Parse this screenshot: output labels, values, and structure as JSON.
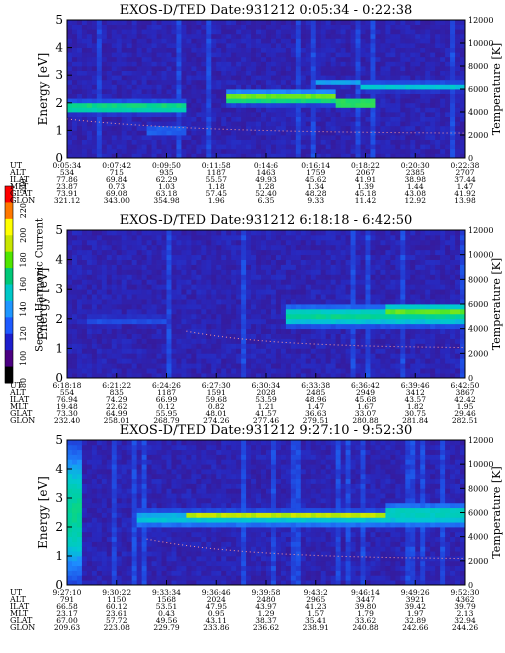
{
  "colorbar": {
    "label": "Second Harmonic Current",
    "ticks": [
      "80",
      "100",
      "120",
      "140",
      "160",
      "180",
      "200",
      "220",
      "240"
    ],
    "colors": [
      "#000000",
      "#4b0082",
      "#1e1ecc",
      "#1e5aff",
      "#1e96ff",
      "#00c8c8",
      "#00c878",
      "#50e600",
      "#c8e600",
      "#ffff00",
      "#ff7800",
      "#ff0000"
    ]
  },
  "chart_data": [
    {
      "type": "heatmap",
      "title": "EXOS-D/TED   Date:931212   0:05:34 - 0:22:38",
      "ylabel": "Energy [eV]",
      "y2label": "Temperature [K]",
      "ylim": [
        0,
        5
      ],
      "y2lim": [
        0,
        12000
      ],
      "yticks": [
        "0",
        "1",
        "2",
        "3",
        "4",
        "5"
      ],
      "y2ticks": [
        "0",
        "2000",
        "4000",
        "6000",
        "8000",
        "10000",
        "12000"
      ],
      "row_labels": [
        "UT",
        "ALT",
        "ILAT",
        "MLT",
        "GLAT",
        "GLON"
      ],
      "columns": [
        [
          "0:05:34",
          "534",
          "77.86",
          "23.87",
          "73.91",
          "321.12"
        ],
        [
          "0:07:42",
          "715",
          "69.84",
          "0.73",
          "69.08",
          "343.00"
        ],
        [
          "0:09:50",
          "935",
          "62.29",
          "1.03",
          "63.18",
          "354.98"
        ],
        [
          "0:11:58",
          "1187",
          "55.57",
          "1.18",
          "57.45",
          "1.96"
        ],
        [
          "0:14:6",
          "1463",
          "49.93",
          "1.28",
          "52.40",
          "6.35"
        ],
        [
          "0:16:14",
          "1759",
          "45.62",
          "1.34",
          "48.28",
          "9.33"
        ],
        [
          "0:18:22",
          "2067",
          "41.91",
          "1.39",
          "45.18",
          "11.42"
        ],
        [
          "0:20:30",
          "2385",
          "38.98",
          "1.44",
          "43.08",
          "12.92"
        ],
        [
          "0:22:38",
          "2707",
          "37.44",
          "1.47",
          "41.92",
          "13.98"
        ]
      ],
      "features": [
        {
          "x0": 0.0,
          "x1": 0.3,
          "e": 1.85,
          "w": 0.28,
          "level": 0.78
        },
        {
          "x0": 0.2,
          "x1": 0.3,
          "e": 1.0,
          "w": 0.35,
          "level": 0.45
        },
        {
          "x0": 0.4,
          "x1": 0.68,
          "e": 2.2,
          "w": 0.3,
          "level": 0.86
        },
        {
          "x0": 0.62,
          "x1": 0.74,
          "e": 2.75,
          "w": 0.15,
          "level": 0.55
        },
        {
          "x0": 0.68,
          "x1": 0.78,
          "e": 2.0,
          "w": 0.18,
          "level": 0.95
        },
        {
          "x0": 0.74,
          "x1": 1.0,
          "e": 2.6,
          "w": 0.22,
          "level": 0.62
        }
      ],
      "temperature": {
        "x0": 0.0,
        "x1": 1.0,
        "k0": 3400,
        "k1": 2100
      }
    },
    {
      "type": "heatmap",
      "title": "EXOS-D/TED   Date:931212   6:18:18 - 6:42:50",
      "ylabel": "Energy [eV]",
      "y2label": "Temperature [K]",
      "ylim": [
        0,
        5
      ],
      "y2lim": [
        0,
        12000
      ],
      "yticks": [
        "0",
        "1",
        "2",
        "3",
        "4",
        "5"
      ],
      "y2ticks": [
        "0",
        "2000",
        "4000",
        "6000",
        "8000",
        "10000",
        "12000"
      ],
      "row_labels": [
        "UT",
        "ALT",
        "ILAT",
        "MLT",
        "GLAT",
        "GLON"
      ],
      "columns": [
        [
          "6:18:18",
          "554",
          "76.94",
          "19.48",
          "73.30",
          "232.40"
        ],
        [
          "6:21:22",
          "835",
          "74.29",
          "22.62",
          "64.99",
          "258.01"
        ],
        [
          "6:24:26",
          "1187",
          "66.99",
          "0.12",
          "55.95",
          "268.79"
        ],
        [
          "6:27:30",
          "1591",
          "59.68",
          "0.82",
          "48.01",
          "274.26"
        ],
        [
          "6:30:34",
          "2028",
          "53.59",
          "1.21",
          "41.57",
          "277.46"
        ],
        [
          "6:33:38",
          "2485",
          "48.96",
          "1.47",
          "36.63",
          "279.51"
        ],
        [
          "6:36:42",
          "2949",
          "45.68",
          "1.67",
          "33.07",
          "280.88"
        ],
        [
          "6:39:46",
          "3412",
          "43.57",
          "1.82",
          "30.75",
          "281.84"
        ],
        [
          "6:42:50",
          "3867",
          "42.42",
          "1.95",
          "29.46",
          "282.51"
        ]
      ],
      "features": [
        {
          "x0": 0.05,
          "x1": 0.25,
          "e": 1.95,
          "w": 0.25,
          "level": 0.4
        },
        {
          "x0": 0.55,
          "x1": 1.0,
          "e": 2.1,
          "w": 0.45,
          "level": 0.72
        },
        {
          "x0": 0.8,
          "x1": 1.0,
          "e": 2.3,
          "w": 0.2,
          "level": 0.88
        }
      ],
      "temperature": {
        "x0": 0.3,
        "x1": 1.0,
        "k0": 3800,
        "k1": 2400
      }
    },
    {
      "type": "heatmap",
      "title": "EXOS-D/TED   Date:931212   9:27:10 - 9:52:30",
      "ylabel": "Energy [eV]",
      "y2label": "Temperature [K]",
      "ylim": [
        0,
        5
      ],
      "y2lim": [
        0,
        12000
      ],
      "yticks": [
        "0",
        "1",
        "2",
        "3",
        "4",
        "5"
      ],
      "y2ticks": [
        "0",
        "2000",
        "4000",
        "6000",
        "8000",
        "10000",
        "12000"
      ],
      "row_labels": [
        "UT",
        "ALT",
        "ILAT",
        "MLT",
        "GLAT",
        "GLON"
      ],
      "columns": [
        [
          "9:27:10",
          "791",
          "66.58",
          "23.17",
          "67.00",
          "209.63"
        ],
        [
          "9:30:22",
          "1150",
          "60.12",
          "23.61",
          "57.72",
          "223.08"
        ],
        [
          "9:33:34",
          "1568",
          "53.51",
          "0.43",
          "49.56",
          "229.79"
        ],
        [
          "9:36:46",
          "2024",
          "47.95",
          "0.95",
          "43.11",
          "233.86"
        ],
        [
          "9:39:58",
          "2480",
          "43.97",
          "1.29",
          "38.37",
          "236.62"
        ],
        [
          "9:43:2",
          "2965",
          "41.23",
          "1.57",
          "35.41",
          "238.91"
        ],
        [
          "9:46:14",
          "3447",
          "39.80",
          "1.79",
          "33.62",
          "240.88"
        ],
        [
          "9:49:26",
          "3921",
          "39.42",
          "1.97",
          "32.89",
          "242.66"
        ],
        [
          "9:52:30",
          "4362",
          "39.79",
          "2.13",
          "32.94",
          "244.26"
        ]
      ],
      "features": [
        {
          "x0": 0.0,
          "x1": 0.04,
          "e": 2.5,
          "w": 3.0,
          "level": 0.72
        },
        {
          "x0": 0.18,
          "x1": 1.0,
          "e": 2.3,
          "w": 0.4,
          "level": 0.62
        },
        {
          "x0": 0.3,
          "x1": 0.8,
          "e": 2.4,
          "w": 0.18,
          "level": 0.9
        },
        {
          "x0": 0.8,
          "x1": 1.0,
          "e": 2.5,
          "w": 0.4,
          "level": 0.68
        }
      ],
      "temperature": {
        "x0": 0.2,
        "x1": 1.0,
        "k0": 3800,
        "k1": 2100
      }
    }
  ]
}
